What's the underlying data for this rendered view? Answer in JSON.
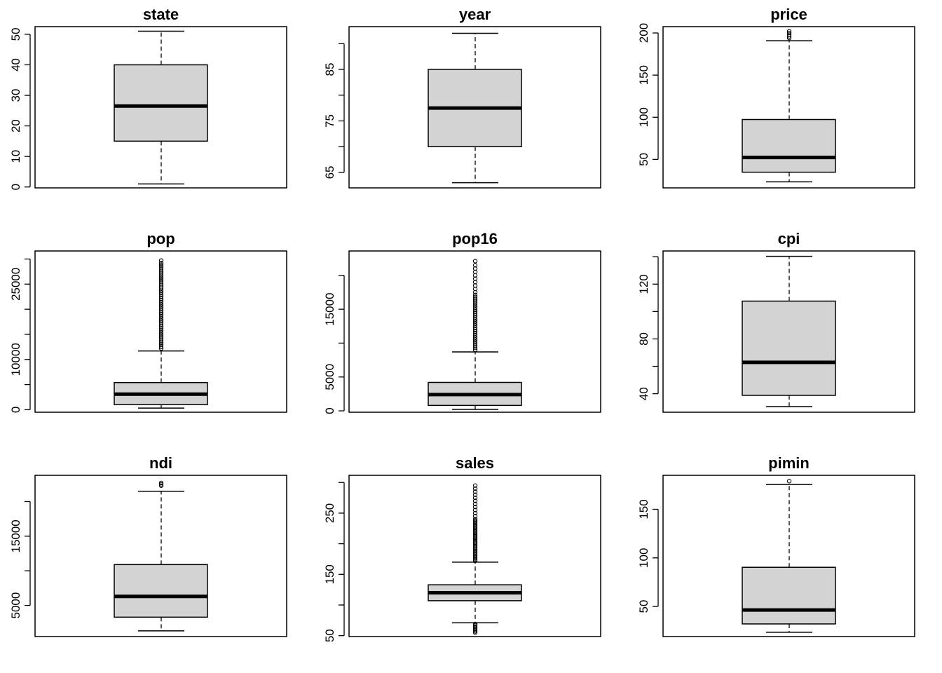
{
  "chart_data": [
    {
      "type": "box",
      "title": "state",
      "ylim": [
        -0.3,
        52.5
      ],
      "ticks": [
        0,
        10,
        20,
        30,
        40,
        50
      ],
      "box": {
        "whisker_low": 1,
        "q1": 15,
        "median": 26.5,
        "q3": 40,
        "whisker_high": 51
      },
      "outliers": []
    },
    {
      "type": "box",
      "title": "year",
      "ylim": [
        62,
        93.3
      ],
      "ticks": [
        65,
        70,
        75,
        80,
        85,
        90
      ],
      "tick_labels": [
        "65",
        "",
        "75",
        "",
        "85",
        ""
      ],
      "box": {
        "whisker_low": 63,
        "q1": 70,
        "median": 77.5,
        "q3": 85,
        "whisker_high": 92
      },
      "outliers": []
    },
    {
      "type": "box",
      "title": "price",
      "ylim": [
        16.2,
        207.5
      ],
      "ticks": [
        50,
        100,
        150,
        200
      ],
      "box": {
        "whisker_low": 23.4,
        "q1": 34.8,
        "median": 52.3,
        "q3": 97.3,
        "whisker_high": 190.8
      },
      "outliers": [
        194,
        196,
        198,
        200,
        202
      ]
    },
    {
      "type": "box",
      "title": "pop",
      "ylim": [
        -500,
        31600
      ],
      "ticks": [
        0,
        5000,
        10000,
        15000,
        20000,
        25000,
        30000
      ],
      "tick_labels": [
        "0",
        "",
        "10000",
        "",
        "",
        "25000",
        ""
      ],
      "box": {
        "whisker_low": 319,
        "q1": 1000,
        "median": 3100,
        "q3": 5400,
        "whisker_high": 11700
      },
      "outliers": [
        12200,
        12500,
        12900,
        13300,
        13700,
        14100,
        14500,
        14900,
        15300,
        15700,
        16100,
        16500,
        16900,
        17300,
        17700,
        18100,
        18500,
        18900,
        19300,
        19700,
        20100,
        20500,
        20900,
        21300,
        21700,
        22100,
        22500,
        22900,
        23300,
        23700,
        24100,
        24400,
        24800,
        25200,
        25600,
        26000,
        26400,
        26800,
        27200,
        27600,
        28000,
        28400,
        28800,
        29200,
        29700
      ]
    },
    {
      "type": "box",
      "title": "pop16",
      "ylim": [
        -200,
        23600
      ],
      "ticks": [
        0,
        5000,
        10000,
        15000,
        20000
      ],
      "tick_labels": [
        "0",
        "5000",
        "",
        "15000",
        ""
      ],
      "box": {
        "whisker_low": 215,
        "q1": 800,
        "median": 2400,
        "q3": 4200,
        "whisker_high": 8700
      },
      "outliers": [
        9000,
        9300,
        9600,
        9900,
        10200,
        10500,
        10800,
        11100,
        11400,
        11700,
        12000,
        12300,
        12600,
        12900,
        13200,
        13500,
        13800,
        14100,
        14400,
        14700,
        15000,
        15300,
        15600,
        15900,
        16200,
        16500,
        16800,
        17100,
        17500,
        18000,
        18500,
        19000,
        19500,
        20000,
        20500,
        21000,
        21500,
        22100
      ]
    },
    {
      "type": "box",
      "title": "cpi",
      "ylim": [
        26.5,
        144.2
      ],
      "ticks": [
        40,
        60,
        80,
        100,
        120,
        140
      ],
      "tick_labels": [
        "40",
        "",
        "80",
        "",
        "120",
        ""
      ],
      "box": {
        "whisker_low": 30.6,
        "q1": 38.8,
        "median": 62.9,
        "q3": 107.6,
        "whisker_high": 140.3
      },
      "outliers": []
    },
    {
      "type": "box",
      "title": "ndi",
      "ylim": [
        500,
        23800
      ],
      "ticks": [
        5000,
        10000,
        15000,
        20000
      ],
      "tick_labels": [
        "5000",
        "",
        "15000",
        ""
      ],
      "box": {
        "whisker_low": 1322,
        "q1": 3300,
        "median": 6300,
        "q3": 10900,
        "whisker_high": 21500
      },
      "outliers": [
        22300,
        22500,
        22700
      ]
    },
    {
      "type": "box",
      "title": "sales",
      "ylim": [
        48.5,
        311.7
      ],
      "ticks": [
        50,
        100,
        150,
        200,
        250,
        300
      ],
      "tick_labels": [
        "50",
        "",
        "150",
        "",
        "250",
        ""
      ],
      "box": {
        "whisker_low": 71,
        "q1": 107,
        "median": 120,
        "q3": 133,
        "whisker_high": 170
      },
      "outliers": [
        55,
        57,
        59,
        61,
        63,
        65,
        67,
        69,
        172,
        174,
        176,
        178,
        180,
        182,
        184,
        186,
        188,
        190,
        192,
        194,
        196,
        198,
        200,
        202,
        204,
        206,
        208,
        210,
        212,
        214,
        216,
        218,
        220,
        222,
        224,
        226,
        228,
        230,
        232,
        234,
        236,
        238,
        240,
        245,
        250,
        255,
        260,
        265,
        270,
        275,
        280,
        285,
        290,
        295
      ]
    },
    {
      "type": "box",
      "title": "pimin",
      "ylim": [
        19,
        185
      ],
      "ticks": [
        50,
        100,
        150
      ],
      "box": {
        "whisker_low": 23.4,
        "q1": 32,
        "median": 46.3,
        "q3": 90.3,
        "whisker_high": 175.5
      },
      "outliers": [
        179
      ]
    }
  ]
}
